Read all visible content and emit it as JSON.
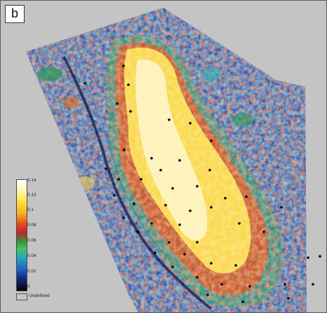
{
  "panel": {
    "label": "b"
  },
  "colors": {
    "background_undefined": "#c4c4c4",
    "ramp": [
      "#000000",
      "#0c0e3a",
      "#142f86",
      "#1d68c8",
      "#2aa6c4",
      "#49c25a",
      "#2f9a3a",
      "#b8282a",
      "#e34a1d",
      "#f7b21e",
      "#ffe84a",
      "#fff9c4",
      "#ffffff"
    ]
  },
  "legend": {
    "ticks": [
      "0.14",
      "0.12",
      "0.1",
      "0.08",
      "0.06",
      "0.04",
      "0.02",
      "0"
    ],
    "undefined_label": "Undefined"
  }
}
